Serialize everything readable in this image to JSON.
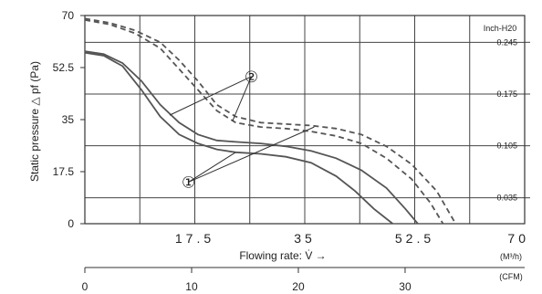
{
  "chart_data": {
    "type": "line",
    "ylabel": "Static pressure △ pf (Pa)",
    "xlabel": "Flowing rate: V̇ →",
    "x_unit": "(M³/h)",
    "x2_unit": "(CFM)",
    "y2_unit": "Inch-H20",
    "xlim": [
      0,
      70
    ],
    "ylim": [
      0,
      70
    ],
    "x2lim": [
      0,
      41.2
    ],
    "x_ticks": [
      "17.5",
      "35",
      "52.5",
      "70"
    ],
    "y_ticks": [
      "0",
      "17.5",
      "35",
      "52.5",
      "70"
    ],
    "y2_ticks": [
      {
        "label": "0.035",
        "value": 8.7
      },
      {
        "label": "0.105",
        "value": 26.2
      },
      {
        "label": "0.175",
        "value": 43.6
      },
      {
        "label": "0.245",
        "value": 61.0
      }
    ],
    "x2_ticks": [
      {
        "label": "0",
        "value": 0
      },
      {
        "label": "10",
        "value": 10
      },
      {
        "label": "20",
        "value": 20
      },
      {
        "label": "30",
        "value": 30
      }
    ],
    "grid": true,
    "annotations": [
      {
        "label": "①",
        "x": 16.5,
        "y": 14.0,
        "targets": [
          [
            24.0,
            24.0
          ],
          [
            36.5,
            32.5
          ]
        ]
      },
      {
        "label": "②",
        "x": 26.5,
        "y": 49.5,
        "targets": [
          [
            13.5,
            36.5
          ],
          [
            23.5,
            34.5
          ]
        ]
      }
    ],
    "series": [
      {
        "style": "solid",
        "points": [
          [
            0,
            57.5
          ],
          [
            3,
            56.5
          ],
          [
            6,
            53
          ],
          [
            9,
            45
          ],
          [
            12,
            36
          ],
          [
            15,
            30
          ],
          [
            18,
            27
          ],
          [
            21,
            25
          ],
          [
            24,
            24
          ],
          [
            28,
            23.5
          ],
          [
            32,
            22.5
          ],
          [
            36,
            20.5
          ],
          [
            40,
            16
          ],
          [
            43,
            11
          ],
          [
            46,
            5
          ],
          [
            49,
            0
          ]
        ]
      },
      {
        "style": "solid",
        "points": [
          [
            0,
            58
          ],
          [
            3,
            57
          ],
          [
            6,
            54
          ],
          [
            9,
            48
          ],
          [
            12,
            40
          ],
          [
            15,
            34
          ],
          [
            18,
            30
          ],
          [
            21,
            28
          ],
          [
            24,
            27.5
          ],
          [
            28,
            27
          ],
          [
            32,
            26
          ],
          [
            36,
            24.5
          ],
          [
            40,
            22
          ],
          [
            44,
            18
          ],
          [
            48,
            12
          ],
          [
            51,
            5
          ],
          [
            53,
            0
          ]
        ]
      },
      {
        "style": "dashed",
        "points": [
          [
            0,
            68.5
          ],
          [
            4,
            67
          ],
          [
            8,
            64
          ],
          [
            12,
            59
          ],
          [
            15,
            52
          ],
          [
            18,
            45
          ],
          [
            21,
            38
          ],
          [
            24,
            34
          ],
          [
            28,
            32.5
          ],
          [
            32,
            32
          ],
          [
            36,
            31
          ],
          [
            40,
            29.5
          ],
          [
            44,
            27
          ],
          [
            48,
            22
          ],
          [
            52,
            15
          ],
          [
            55,
            7
          ],
          [
            57,
            0
          ]
        ]
      },
      {
        "style": "dashed",
        "points": [
          [
            0,
            69
          ],
          [
            4,
            67.5
          ],
          [
            8,
            65
          ],
          [
            12,
            61
          ],
          [
            15,
            55
          ],
          [
            18,
            48
          ],
          [
            21,
            40
          ],
          [
            24,
            36
          ],
          [
            28,
            34
          ],
          [
            32,
            33.5
          ],
          [
            36,
            33
          ],
          [
            40,
            32
          ],
          [
            44,
            30
          ],
          [
            48,
            26
          ],
          [
            52,
            20
          ],
          [
            56,
            11
          ],
          [
            59,
            0
          ]
        ]
      }
    ]
  }
}
